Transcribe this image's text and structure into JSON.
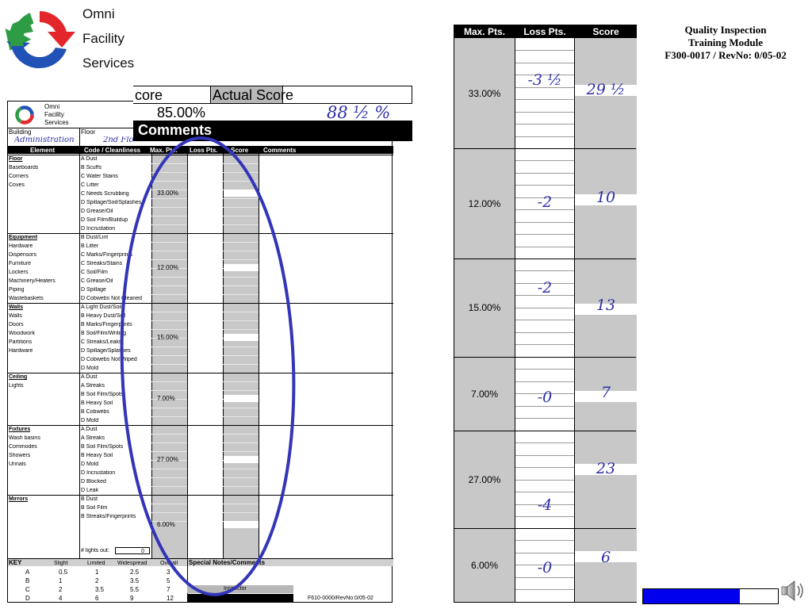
{
  "brand": {
    "line1": "Omni",
    "line2": "Facility",
    "line3": "Services"
  },
  "title_block": {
    "line1": "Quality Inspection",
    "line2": "Training Module",
    "line3": "F300-0017 / RevNo:  0/05-02"
  },
  "score_overlay": {
    "col1_header": "Score",
    "col1_header_partial": "core",
    "col2_header": "Actual Score",
    "possible": "85.00%",
    "actual": "88 ½ %",
    "comments_label": "Comments"
  },
  "form": {
    "logo_text": [
      "Omni",
      "Facility",
      "Services"
    ],
    "building_label": "Building",
    "building_value": "Administration",
    "floor_label": "Floor",
    "floor_value": "2nd Flo",
    "headers": [
      "Element",
      "Code / Cleanliness",
      "Max. Pts.",
      "Loss Pts.",
      "Score",
      "Comments"
    ],
    "categories": [
      {
        "title": "Floor",
        "items": [
          "Baseboards",
          "Corners",
          "Coves"
        ],
        "codes": [
          "A  Dust",
          "B  Scuffs",
          "C  Water Stains",
          "C  Litter",
          "C  Needs Scrubbing",
          "D  Spillage/Soil/Splashes",
          "D  Grease/Oil",
          "D  Soil Film/Buildup",
          "D  Incrustation"
        ],
        "max": "33.00%"
      },
      {
        "title": "Equipment",
        "items": [
          "Hardware",
          "Dispensors",
          "Furniture",
          "Lockers",
          "Machinery/Heaters",
          "Piping",
          "Wastebaskets"
        ],
        "codes": [
          "B  Dust/Lint",
          "B  Litter",
          "C  Marks/Fingerprints",
          "C  Streaks/Stains",
          "C  Soil/Film",
          "C  Grease/Oil",
          "D  Spillage",
          "D  Cobwebs Not Cleaned"
        ],
        "max": "12.00%"
      },
      {
        "title": "Walls",
        "items": [
          "Walls",
          "Doors",
          "Woodwork",
          "Partitions",
          "Hardware"
        ],
        "codes": [
          "A  Light Dust/Soil",
          "B  Heavy Dust/Soil",
          "B  Marks/Fingerprints",
          "B  Soil/Film/Writing",
          "C  Streaks/Leaks",
          "D  Spillage/Splashes",
          "D  Cobwebs Not Wiped",
          "D  Mold"
        ],
        "max": "15.00%"
      },
      {
        "title": "Ceiling",
        "items": [
          "Lights"
        ],
        "codes": [
          "A  Dust",
          "A  Streaks",
          "B  Soil Film/Spots",
          "B  Heavy Soil",
          "B  Cobwebs",
          "D  Mold"
        ],
        "max": "7.00%"
      },
      {
        "title": "Fixtures",
        "items": [
          "Wash basins",
          "Commodes",
          "Showers",
          "Urinals"
        ],
        "codes": [
          "A  Dust",
          "A  Streaks",
          "B  Soil Film/Spots",
          "B  Heavy Soil",
          "D  Mold",
          "D  Incrustation",
          "D  Blocked",
          "D  Leak"
        ],
        "max": "27.00%"
      },
      {
        "title": "Mirrors",
        "items": [],
        "codes": [
          "B  Dust",
          "B  Soil Film",
          "B  Streaks/Fingerprints"
        ],
        "max": "6.00%"
      }
    ],
    "lights_out_label": "# lights out:",
    "lights_out_value": "0",
    "key": {
      "title": "KEY",
      "headers": [
        "Slight",
        "Limited",
        "Widespread",
        "Overall"
      ],
      "rows": [
        [
          "A",
          "0.5",
          "1",
          "2.5",
          "3"
        ],
        [
          "B",
          "1",
          "2",
          "3.5",
          "5"
        ],
        [
          "C",
          "2",
          "3.5",
          "5.5",
          "7"
        ],
        [
          "D",
          "4",
          "6",
          "9",
          "12"
        ]
      ]
    },
    "special_notes_label": "Special Notes/Comments",
    "inspector_label": "Inspector",
    "form_code": "F610-0000/RevNo:0/05-02"
  },
  "score_table": {
    "headers": [
      "Max. Pts.",
      "Loss Pts.",
      "Score"
    ],
    "rows": [
      {
        "max": "33.00%",
        "loss": "-3 ½",
        "score": "29 ½"
      },
      {
        "max": "12.00%",
        "loss": "-2",
        "score": "10"
      },
      {
        "max": "15.00%",
        "loss": "-2",
        "score": "13"
      },
      {
        "max": "7.00%",
        "loss": "-0",
        "score": "7"
      },
      {
        "max": "27.00%",
        "loss": "-4",
        "score": "23"
      },
      {
        "max": "6.00%",
        "loss": "-0",
        "score": "6"
      }
    ]
  },
  "progress": {
    "value_fraction": 0.72,
    "color": "#0000ee"
  },
  "colors": {
    "handwriting": "#2d2fa6",
    "oval": "#3335b8",
    "gray": "#c8c8c8",
    "logo_red": "#e3262b",
    "logo_green": "#2e9c45",
    "logo_blue": "#2152b5"
  },
  "icons": {
    "speaker": "speaker-icon",
    "logo": "recycle-logo-icon"
  }
}
